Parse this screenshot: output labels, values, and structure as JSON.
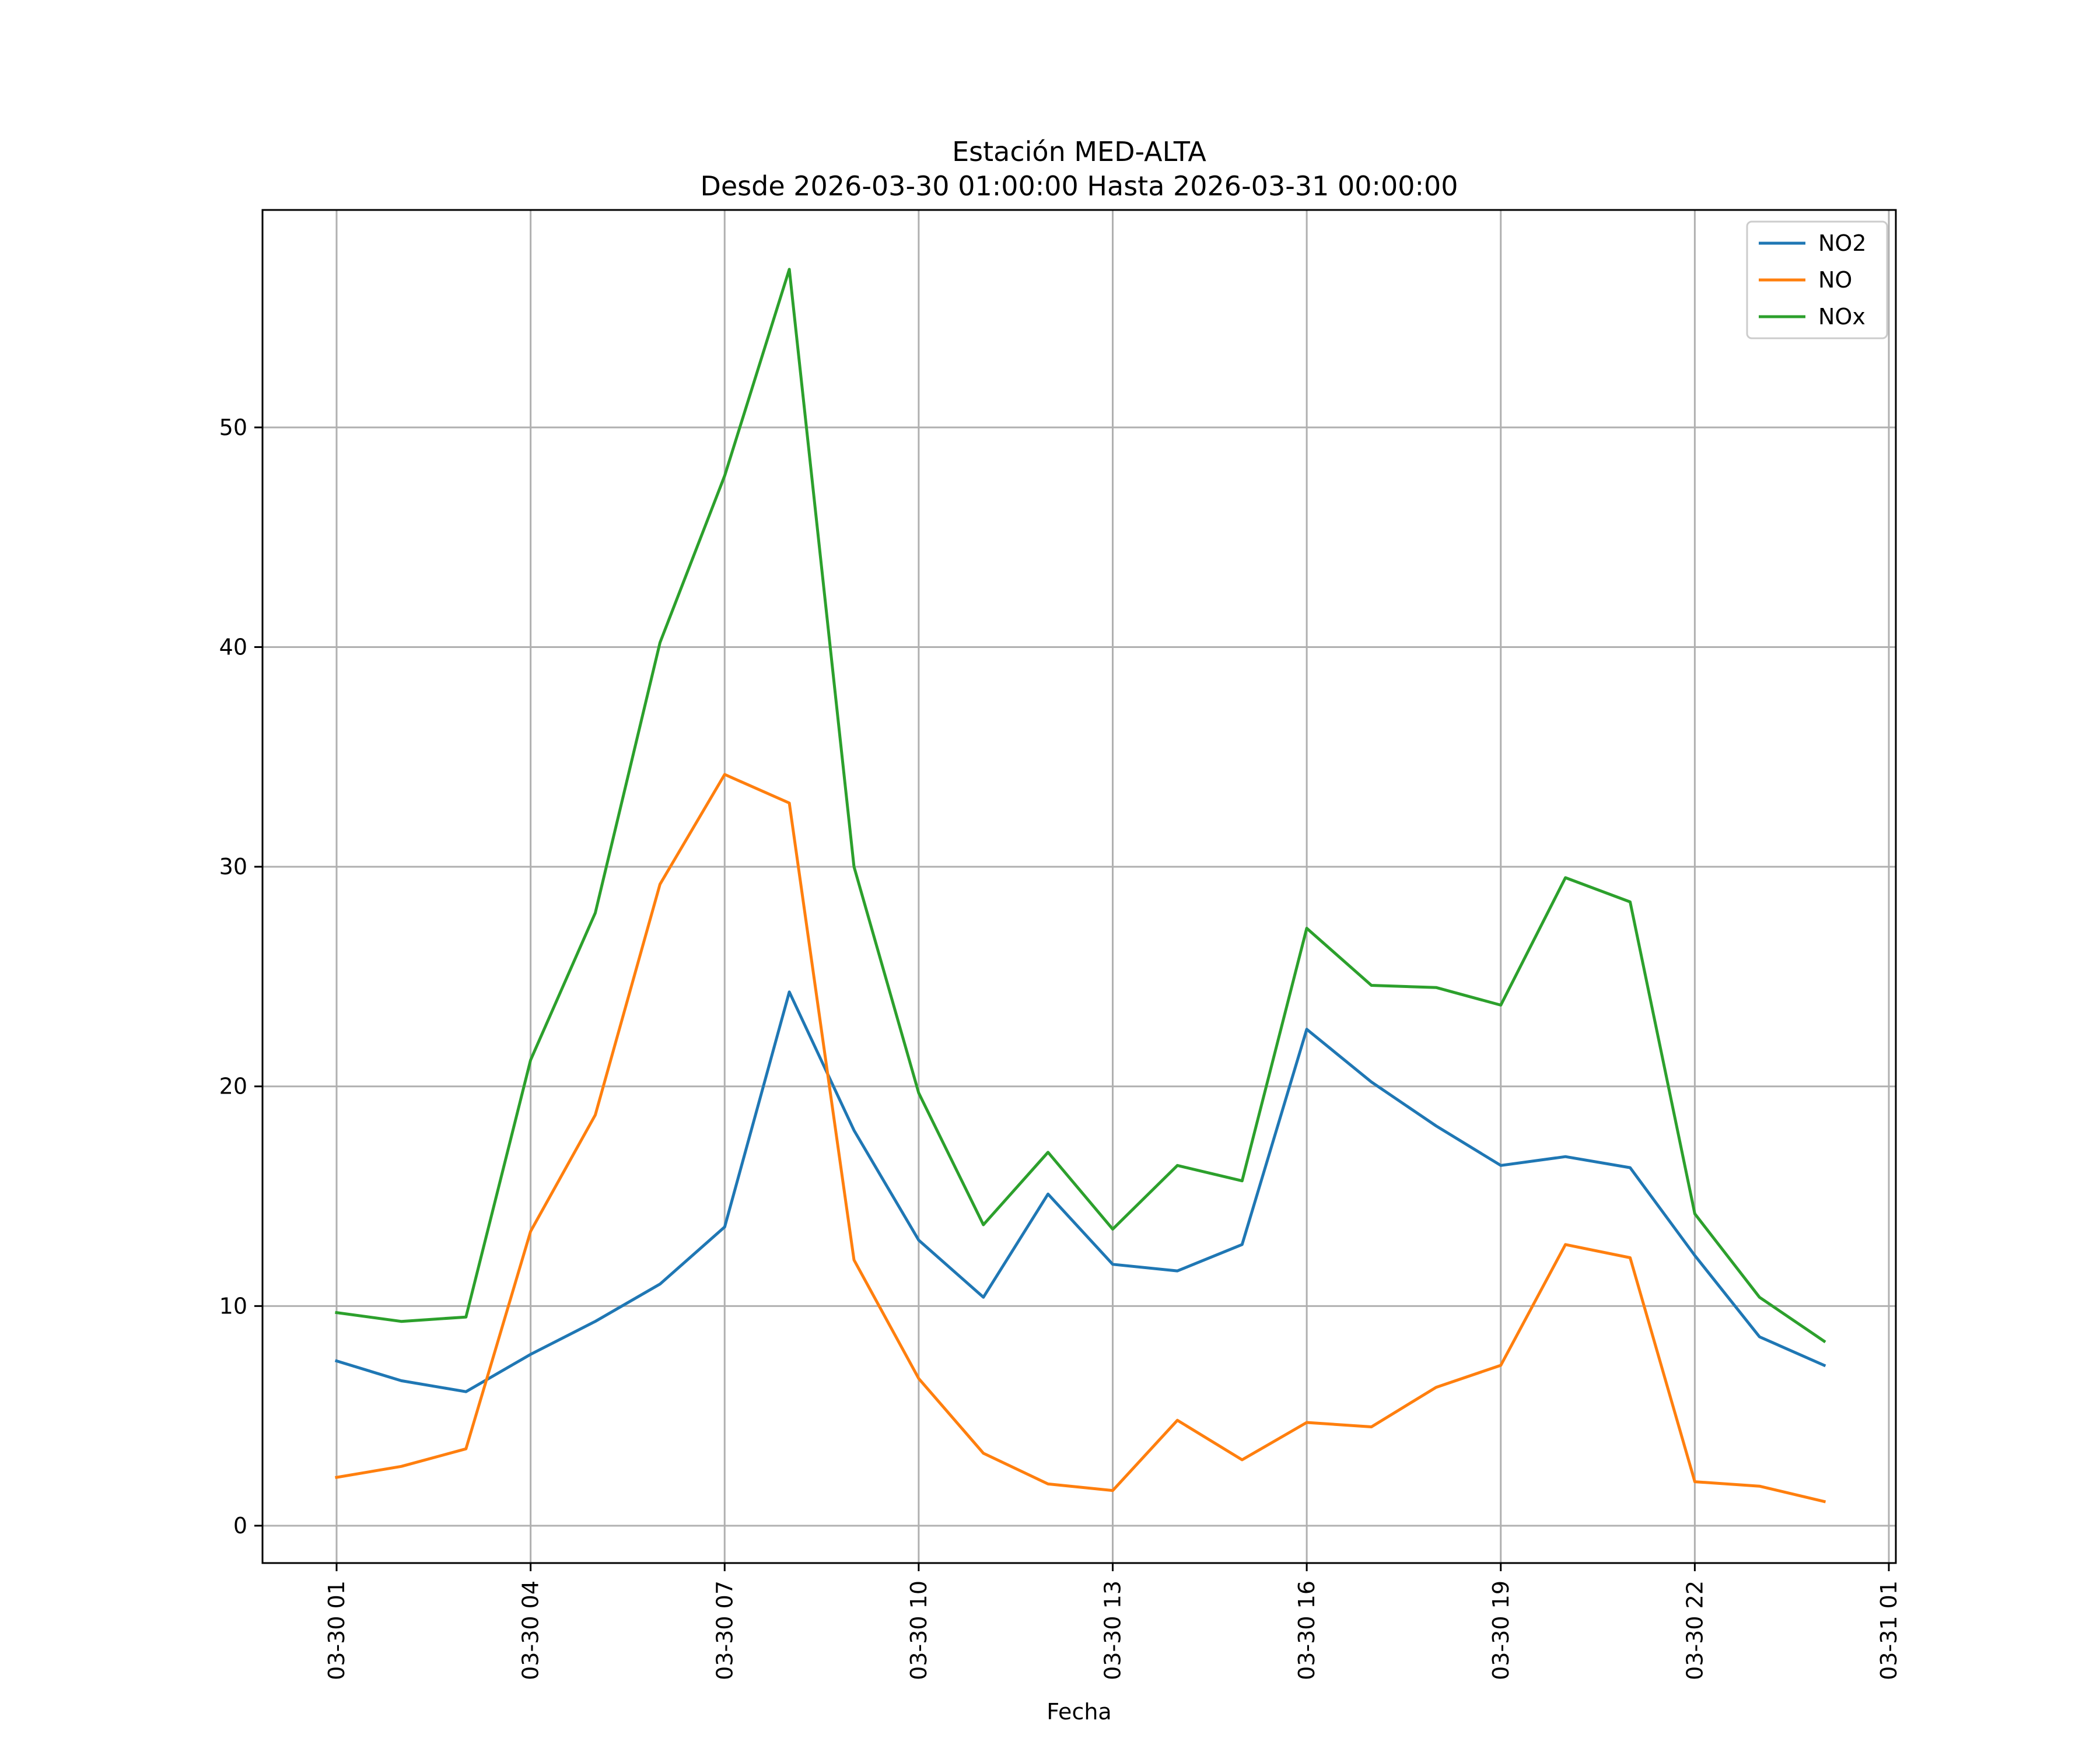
{
  "chart_data": {
    "type": "line",
    "title": "Estación MED-ALTA",
    "subtitle": "Desde 2026-03-30 01:00:00 Hasta 2026-03-31 00:00:00",
    "xlabel": "Fecha",
    "ylabel": "",
    "x": [
      "03-30 01",
      "03-30 02",
      "03-30 03",
      "03-30 04",
      "03-30 05",
      "03-30 06",
      "03-30 07",
      "03-30 08",
      "03-30 09",
      "03-30 10",
      "03-30 11",
      "03-30 12",
      "03-30 13",
      "03-30 14",
      "03-30 15",
      "03-30 16",
      "03-30 17",
      "03-30 18",
      "03-30 19",
      "03-30 20",
      "03-30 21",
      "03-30 22",
      "03-30 23",
      "03-31 00"
    ],
    "xticks": [
      "03-30 01",
      "03-30 04",
      "03-30 07",
      "03-30 10",
      "03-30 13",
      "03-30 16",
      "03-30 19",
      "03-30 22",
      "03-31 01"
    ],
    "yticks": [
      "0",
      "10",
      "20",
      "30",
      "40",
      "50"
    ],
    "ylim": [
      -1.7,
      59.9
    ],
    "grid": true,
    "legend_position": "top-right",
    "series": [
      {
        "name": "NO2",
        "color": "#1f77b4",
        "values": [
          7.5,
          6.6,
          6.1,
          7.8,
          9.3,
          11.0,
          13.6,
          24.3,
          18.0,
          13.0,
          10.4,
          15.1,
          11.9,
          11.6,
          12.8,
          22.6,
          20.2,
          18.2,
          16.4,
          16.8,
          16.3,
          12.3,
          8.6,
          7.3
        ]
      },
      {
        "name": "NO",
        "color": "#ff7f0e",
        "values": [
          2.2,
          2.7,
          3.5,
          13.4,
          18.7,
          29.2,
          34.2,
          32.9,
          12.1,
          6.7,
          3.3,
          1.9,
          1.6,
          4.8,
          3.0,
          4.7,
          4.5,
          6.3,
          7.3,
          12.8,
          12.2,
          2.0,
          1.8,
          1.1
        ]
      },
      {
        "name": "NOx",
        "color": "#2ca02c",
        "values": [
          9.7,
          9.3,
          9.5,
          21.2,
          27.9,
          40.2,
          47.8,
          57.2,
          30.0,
          19.7,
          13.7,
          17.0,
          13.5,
          16.4,
          15.7,
          27.2,
          24.6,
          24.5,
          23.7,
          29.5,
          28.4,
          14.2,
          10.4,
          8.4
        ]
      }
    ]
  }
}
